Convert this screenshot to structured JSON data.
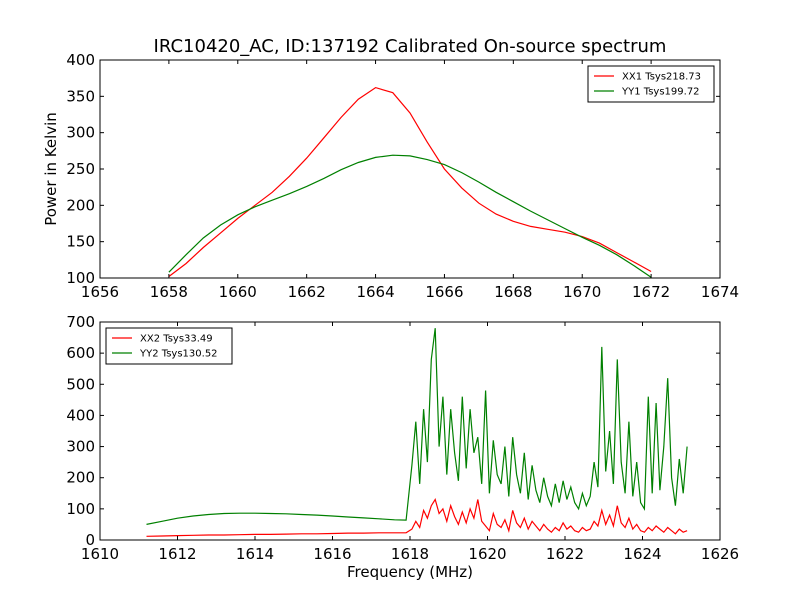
{
  "title": "IRC10420_AC, ID:137192 Calibrated On-source spectrum",
  "chart_data": [
    {
      "type": "line",
      "ylabel": "Power in Kelvin",
      "xlabel": "",
      "xlim": [
        1656,
        1674
      ],
      "ylim": [
        100,
        400
      ],
      "xticks": [
        1656,
        1658,
        1660,
        1662,
        1664,
        1666,
        1668,
        1670,
        1672,
        1674
      ],
      "yticks": [
        100,
        150,
        200,
        250,
        300,
        350,
        400
      ],
      "legend_position": "top-right",
      "series": [
        {
          "name": "XX1 Tsys218.73",
          "color": "#ff0000",
          "x": [
            1658,
            1658.5,
            1659,
            1659.5,
            1660,
            1660.5,
            1661,
            1661.5,
            1662,
            1662.5,
            1663,
            1663.5,
            1664,
            1664.5,
            1665,
            1665.5,
            1666,
            1666.5,
            1667,
            1667.5,
            1668,
            1668.5,
            1669,
            1669.5,
            1670,
            1670.5,
            1671,
            1671.5,
            1672
          ],
          "y": [
            102,
            120,
            142,
            162,
            182,
            200,
            218,
            240,
            265,
            293,
            321,
            346,
            362,
            355,
            327,
            287,
            250,
            224,
            203,
            188,
            178,
            171,
            167,
            163,
            157,
            148,
            135,
            122,
            109
          ]
        },
        {
          "name": "YY1 Tsys199.72",
          "color": "#008000",
          "x": [
            1658,
            1658.5,
            1659,
            1659.5,
            1660,
            1660.5,
            1661,
            1661.5,
            1662,
            1662.5,
            1663,
            1663.5,
            1664,
            1664.5,
            1665,
            1665.5,
            1666,
            1666.5,
            1667,
            1667.5,
            1668,
            1668.5,
            1669,
            1669.5,
            1670,
            1670.5,
            1671,
            1671.5,
            1672
          ],
          "y": [
            108,
            132,
            155,
            173,
            187,
            198,
            207,
            216,
            226,
            237,
            249,
            259,
            266,
            269,
            268,
            263,
            256,
            245,
            232,
            218,
            205,
            192,
            180,
            168,
            156,
            145,
            132,
            117,
            101
          ]
        }
      ]
    },
    {
      "type": "line",
      "ylabel": "",
      "xlabel": "Frequency (MHz)",
      "xlim": [
        1610,
        1626
      ],
      "ylim": [
        0,
        700
      ],
      "xticks": [
        1610,
        1612,
        1614,
        1616,
        1618,
        1620,
        1622,
        1624,
        1626
      ],
      "yticks": [
        0,
        100,
        200,
        300,
        400,
        500,
        600,
        700
      ],
      "legend_position": "top-left",
      "series": [
        {
          "name": "XX2 Tsys33.49",
          "color": "#ff0000",
          "x": [
            1611.2,
            1611.6,
            1612,
            1612.4,
            1612.8,
            1613.2,
            1613.6,
            1614,
            1614.4,
            1614.8,
            1615.2,
            1615.6,
            1616,
            1616.4,
            1616.8,
            1617.2,
            1617.6,
            1617.9,
            1618.05,
            1618.15,
            1618.25,
            1618.35,
            1618.45,
            1618.55,
            1618.65,
            1618.75,
            1618.85,
            1618.95,
            1619.05,
            1619.15,
            1619.25,
            1619.35,
            1619.45,
            1619.55,
            1619.65,
            1619.75,
            1619.85,
            1619.95,
            1620.05,
            1620.15,
            1620.25,
            1620.35,
            1620.45,
            1620.55,
            1620.65,
            1620.75,
            1620.85,
            1620.95,
            1621.05,
            1621.15,
            1621.25,
            1621.35,
            1621.45,
            1621.55,
            1621.65,
            1621.75,
            1621.85,
            1621.95,
            1622.05,
            1622.15,
            1622.25,
            1622.35,
            1622.45,
            1622.55,
            1622.65,
            1622.75,
            1622.85,
            1622.95,
            1623.05,
            1623.15,
            1623.25,
            1623.35,
            1623.45,
            1623.55,
            1623.65,
            1623.75,
            1623.85,
            1623.95,
            1624.05,
            1624.15,
            1624.25,
            1624.35,
            1624.45,
            1624.55,
            1624.65,
            1624.75,
            1624.85,
            1624.95,
            1625.05,
            1625.15
          ],
          "y": [
            12,
            13,
            14,
            15,
            16,
            16,
            17,
            18,
            18,
            19,
            20,
            20,
            21,
            22,
            22,
            23,
            23,
            23,
            35,
            60,
            40,
            95,
            70,
            110,
            130,
            85,
            100,
            60,
            110,
            75,
            50,
            90,
            55,
            100,
            70,
            130,
            60,
            45,
            30,
            85,
            50,
            40,
            65,
            30,
            95,
            55,
            40,
            70,
            35,
            60,
            45,
            30,
            50,
            35,
            25,
            40,
            30,
            55,
            35,
            45,
            30,
            25,
            40,
            30,
            35,
            60,
            45,
            95,
            50,
            80,
            45,
            110,
            55,
            40,
            70,
            35,
            50,
            30,
            25,
            40,
            30,
            45,
            35,
            25,
            40,
            30,
            20,
            35,
            25,
            30
          ]
        },
        {
          "name": "YY2 Tsys130.52",
          "color": "#008000",
          "x": [
            1611.2,
            1611.6,
            1612,
            1612.4,
            1612.8,
            1613.2,
            1613.6,
            1614,
            1614.4,
            1614.8,
            1615.2,
            1615.6,
            1616,
            1616.4,
            1616.8,
            1617.2,
            1617.6,
            1617.9,
            1618.05,
            1618.15,
            1618.25,
            1618.35,
            1618.45,
            1618.55,
            1618.65,
            1618.75,
            1618.85,
            1618.95,
            1619.05,
            1619.15,
            1619.25,
            1619.35,
            1619.45,
            1619.55,
            1619.65,
            1619.75,
            1619.85,
            1619.95,
            1620.05,
            1620.15,
            1620.25,
            1620.35,
            1620.45,
            1620.55,
            1620.65,
            1620.75,
            1620.85,
            1620.95,
            1621.05,
            1621.15,
            1621.25,
            1621.35,
            1621.45,
            1621.55,
            1621.65,
            1621.75,
            1621.85,
            1621.95,
            1622.05,
            1622.15,
            1622.25,
            1622.35,
            1622.45,
            1622.55,
            1622.65,
            1622.75,
            1622.85,
            1622.95,
            1623.05,
            1623.15,
            1623.25,
            1623.35,
            1623.45,
            1623.55,
            1623.65,
            1623.75,
            1623.85,
            1623.95,
            1624.05,
            1624.15,
            1624.25,
            1624.35,
            1624.45,
            1624.55,
            1624.65,
            1624.75,
            1624.85,
            1624.95,
            1625.05,
            1625.15
          ],
          "y": [
            50,
            60,
            70,
            77,
            82,
            85,
            86,
            86,
            85,
            84,
            82,
            80,
            77,
            74,
            71,
            68,
            65,
            64,
            240,
            380,
            180,
            420,
            250,
            580,
            680,
            300,
            460,
            210,
            420,
            280,
            190,
            460,
            230,
            420,
            280,
            330,
            180,
            480,
            150,
            320,
            210,
            180,
            300,
            140,
            330,
            210,
            150,
            280,
            130,
            240,
            160,
            120,
            200,
            140,
            110,
            180,
            120,
            190,
            130,
            170,
            120,
            100,
            150,
            110,
            140,
            250,
            170,
            620,
            220,
            350,
            180,
            580,
            250,
            150,
            380,
            140,
            250,
            120,
            100,
            460,
            150,
            440,
            160,
            300,
            520,
            200,
            110,
            260,
            150,
            300
          ]
        }
      ]
    }
  ]
}
